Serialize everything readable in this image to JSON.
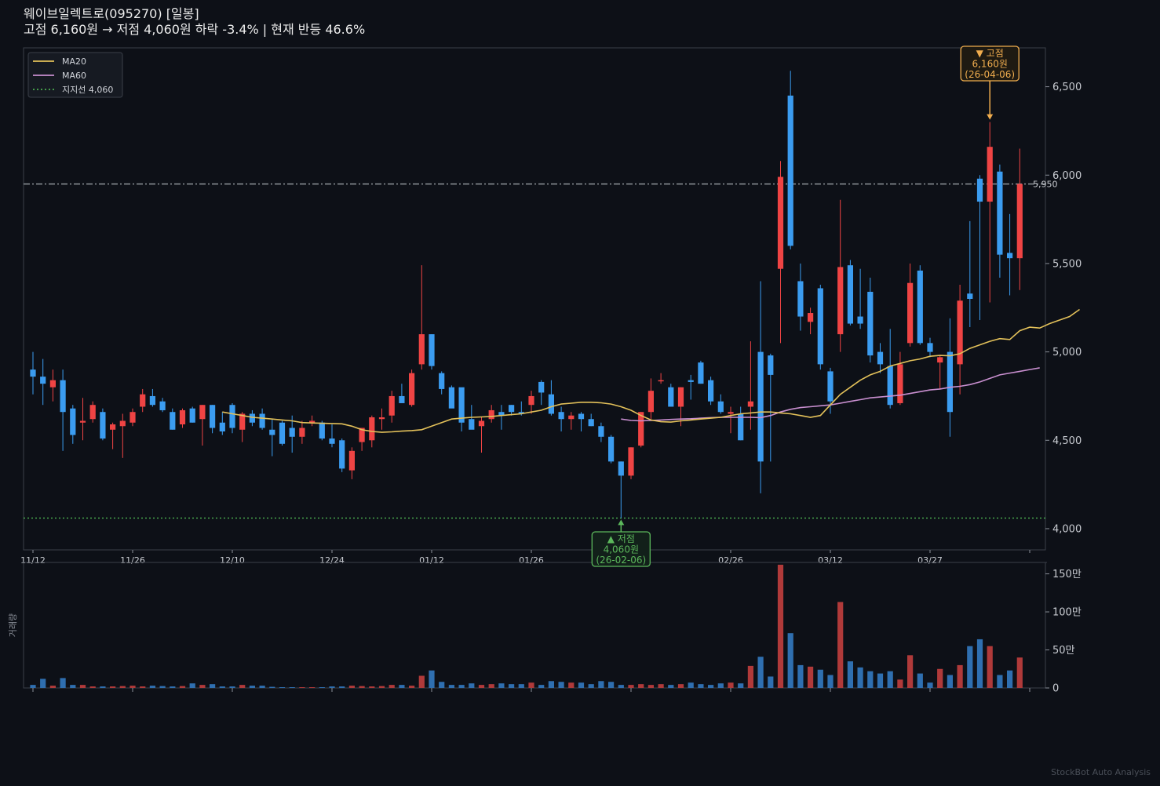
{
  "header": {
    "title": "웨이브일렉트로(095270)  [일봉]",
    "subtitle": "고점 6,160원 → 저점 4,060원  하락 -3.4%  |  현재 반등 46.6%"
  },
  "watermark": "StockBot Auto Analysis",
  "colors": {
    "background": "#0d1017",
    "up": "#ef4444",
    "down": "#3b9cf0",
    "ma20": "#e3c15a",
    "ma60": "#c98fd0",
    "support": "#4caf50",
    "resistance": "#9aa0a6",
    "high_annotation": "#f0ad4e",
    "low_annotation": "#5cb85c"
  },
  "chart_data": [
    {
      "type": "candlestick",
      "ylim": [
        3880,
        6720
      ],
      "yticks": [
        4000,
        4500,
        5000,
        5500,
        6000,
        6500
      ],
      "ytick_labels": [
        "4,000",
        "4,500",
        "5,000",
        "5,500",
        "6,000",
        "6,500"
      ],
      "xtick_labels": [
        {
          "index": 0,
          "label": "11/12"
        },
        {
          "index": 10,
          "label": "11/26"
        },
        {
          "index": 20,
          "label": "12/10"
        },
        {
          "index": 30,
          "label": "12/24"
        },
        {
          "index": 40,
          "label": "01/12"
        },
        {
          "index": 50,
          "label": "01/26"
        },
        {
          "index": 60,
          "label": ""
        },
        {
          "index": 70,
          "label": "02/26"
        },
        {
          "index": 80,
          "label": "03/12"
        },
        {
          "index": 90,
          "label": "03/27"
        },
        {
          "index": 100,
          "label": ""
        }
      ],
      "legend": {
        "position": "top-left",
        "entries": [
          {
            "name": "MA20",
            "style": "solid",
            "color": "#e3c15a"
          },
          {
            "name": "MA60",
            "style": "solid",
            "color": "#c98fd0"
          },
          {
            "name": "지지선 4,060",
            "style": "dotted",
            "color": "#4caf50"
          }
        ]
      },
      "support_line": {
        "value": 4060
      },
      "resistance_line": {
        "value": 5950,
        "label": "5,950"
      },
      "annotations": [
        {
          "kind": "high",
          "index": 96,
          "value": 6300,
          "lines": [
            "▼ 고점",
            "6,160원",
            "(26-04-06)"
          ]
        },
        {
          "kind": "low",
          "index": 59,
          "value": 4060,
          "lines": [
            "▲ 저점",
            "4,060원",
            "(26-02-06)"
          ]
        }
      ],
      "candles": [
        [
          4900,
          5000,
          4760,
          4860
        ],
        [
          4860,
          4960,
          4700,
          4820
        ],
        [
          4800,
          4900,
          4720,
          4840
        ],
        [
          4840,
          4900,
          4440,
          4660
        ],
        [
          4680,
          4700,
          4480,
          4530
        ],
        [
          4600,
          4740,
          4500,
          4610
        ],
        [
          4620,
          4720,
          4600,
          4700
        ],
        [
          4660,
          4680,
          4500,
          4510
        ],
        [
          4560,
          4600,
          4450,
          4590
        ],
        [
          4580,
          4650,
          4400,
          4610
        ],
        [
          4600,
          4680,
          4580,
          4660
        ],
        [
          4690,
          4790,
          4660,
          4760
        ],
        [
          4750,
          4790,
          4690,
          4700
        ],
        [
          4720,
          4740,
          4660,
          4670
        ],
        [
          4660,
          4680,
          4560,
          4560
        ],
        [
          4590,
          4680,
          4570,
          4670
        ],
        [
          4680,
          4690,
          4600,
          4600
        ],
        [
          4620,
          4700,
          4470,
          4700
        ],
        [
          4700,
          4700,
          4540,
          4570
        ],
        [
          4600,
          4660,
          4530,
          4550
        ],
        [
          4700,
          4710,
          4540,
          4570
        ],
        [
          4560,
          4660,
          4490,
          4650
        ],
        [
          4650,
          4670,
          4580,
          4600
        ],
        [
          4650,
          4680,
          4560,
          4570
        ],
        [
          4560,
          4620,
          4410,
          4530
        ],
        [
          4600,
          4610,
          4470,
          4480
        ],
        [
          4570,
          4640,
          4430,
          4520
        ],
        [
          4520,
          4610,
          4480,
          4570
        ],
        [
          4600,
          4640,
          4580,
          4610
        ],
        [
          4600,
          4610,
          4500,
          4510
        ],
        [
          4510,
          4590,
          4460,
          4480
        ],
        [
          4500,
          4510,
          4320,
          4340
        ],
        [
          4330,
          4460,
          4280,
          4440
        ],
        [
          4490,
          4550,
          4440,
          4570
        ],
        [
          4500,
          4640,
          4460,
          4630
        ],
        [
          4620,
          4680,
          4560,
          4630
        ],
        [
          4640,
          4780,
          4600,
          4750
        ],
        [
          4750,
          4820,
          4730,
          4710
        ],
        [
          4700,
          4900,
          4690,
          4880
        ],
        [
          4930,
          5490,
          4900,
          5100
        ],
        [
          5100,
          5100,
          4900,
          4920
        ],
        [
          4880,
          4890,
          4760,
          4790
        ],
        [
          4800,
          4810,
          4700,
          4680
        ],
        [
          4800,
          4790,
          4550,
          4600
        ],
        [
          4620,
          4700,
          4580,
          4560
        ],
        [
          4580,
          4630,
          4430,
          4610
        ],
        [
          4620,
          4700,
          4600,
          4670
        ],
        [
          4660,
          4700,
          4560,
          4640
        ],
        [
          4700,
          4700,
          4640,
          4660
        ],
        [
          4660,
          4720,
          4640,
          4650
        ],
        [
          4700,
          4780,
          4650,
          4750
        ],
        [
          4830,
          4840,
          4700,
          4770
        ],
        [
          4760,
          4840,
          4640,
          4650
        ],
        [
          4660,
          4690,
          4550,
          4620
        ],
        [
          4620,
          4660,
          4560,
          4640
        ],
        [
          4650,
          4660,
          4550,
          4620
        ],
        [
          4620,
          4650,
          4580,
          4580
        ],
        [
          4580,
          4600,
          4490,
          4520
        ],
        [
          4520,
          4530,
          4370,
          4380
        ],
        [
          4380,
          4380,
          4060,
          4300
        ],
        [
          4300,
          4460,
          4280,
          4460
        ],
        [
          4470,
          4660,
          4460,
          4660
        ],
        [
          4660,
          4850,
          4620,
          4780
        ],
        [
          4840,
          4880,
          4820,
          4840
        ],
        [
          4800,
          4820,
          4690,
          4690
        ],
        [
          4690,
          4800,
          4580,
          4800
        ],
        [
          4840,
          4870,
          4730,
          4830
        ],
        [
          4940,
          4950,
          4820,
          4820
        ],
        [
          4840,
          4860,
          4700,
          4720
        ],
        [
          4720,
          4760,
          4650,
          4660
        ],
        [
          4650,
          4690,
          4540,
          4660
        ],
        [
          4650,
          4690,
          4500,
          4500
        ],
        [
          4690,
          5060,
          4560,
          4720
        ],
        [
          5000,
          5400,
          4200,
          4380
        ],
        [
          4980,
          4990,
          4380,
          4870
        ],
        [
          5470,
          6080,
          5050,
          5990
        ],
        [
          6450,
          6590,
          5580,
          5600
        ],
        [
          5400,
          5500,
          5120,
          5200
        ],
        [
          5170,
          5250,
          5100,
          5220
        ],
        [
          5360,
          5380,
          4900,
          4930
        ],
        [
          4890,
          4910,
          4650,
          4720
        ],
        [
          5100,
          5860,
          5000,
          5480
        ],
        [
          5490,
          5520,
          5150,
          5160
        ],
        [
          5200,
          5470,
          5130,
          5160
        ],
        [
          5340,
          5420,
          4940,
          4980
        ],
        [
          5000,
          5050,
          4880,
          4930
        ],
        [
          4920,
          5130,
          4680,
          4700
        ],
        [
          4710,
          5000,
          4700,
          4930
        ],
        [
          5050,
          5500,
          5030,
          5390
        ],
        [
          5460,
          5490,
          5040,
          5050
        ],
        [
          5050,
          5080,
          4970,
          5000
        ],
        [
          4940,
          4980,
          4790,
          4970
        ],
        [
          5000,
          5190,
          4520,
          4660
        ],
        [
          4930,
          5380,
          4760,
          5290
        ],
        [
          5330,
          5740,
          5140,
          5300
        ],
        [
          5980,
          6000,
          5180,
          5850
        ],
        [
          5850,
          6300,
          5280,
          6160
        ],
        [
          6020,
          6060,
          5420,
          5550
        ],
        [
          5560,
          5780,
          5320,
          5530
        ],
        [
          5530,
          6150,
          5350,
          5950
        ]
      ],
      "ma20": [
        {
          "start": 19,
          "values": [
            4660,
            4650,
            4640,
            4630,
            4625,
            4620,
            4615,
            4610,
            4600,
            4598,
            4596,
            4595,
            4593,
            4580,
            4560,
            4550,
            4545,
            4548,
            4552,
            4555,
            4560,
            4580,
            4600,
            4620,
            4625,
            4630,
            4632,
            4635,
            4640,
            4645,
            4650,
            4660,
            4670,
            4690,
            4705,
            4710,
            4715,
            4715,
            4712,
            4705,
            4690,
            4670,
            4640,
            4615,
            4605,
            4603,
            4610,
            4615,
            4620,
            4625,
            4630,
            4640,
            4650,
            4655,
            4660,
            4660,
            4655,
            4650,
            4640,
            4630,
            4640,
            4700,
            4760,
            4800,
            4840,
            4870,
            4890,
            4920,
            4935,
            4950,
            4960,
            4975,
            4980,
            4978,
            4990,
            5020,
            5040,
            5060,
            5075,
            5070,
            5120,
            5140,
            5135,
            5160,
            5180,
            5200,
            5240
          ]
        }
      ],
      "ma60": [
        {
          "start": 59,
          "values": [
            4620,
            4612,
            4610,
            4612,
            4615,
            4618,
            4620,
            4622,
            4625,
            4628,
            4630,
            4630,
            4630,
            4630,
            4628,
            4640,
            4660,
            4675,
            4685,
            4690,
            4695,
            4700,
            4710,
            4720,
            4730,
            4740,
            4745,
            4750,
            4755,
            4765,
            4775,
            4785,
            4790,
            4800,
            4805,
            4815,
            4830,
            4850,
            4870,
            4880,
            4890,
            4900,
            4910
          ]
        }
      ],
      "candle_color_rule": "red = close above open, blue = close below open"
    },
    {
      "type": "bar",
      "ylabel": "거래량",
      "ylim": [
        0,
        1650000
      ],
      "yticks": [
        0,
        500000,
        1000000,
        1500000
      ],
      "ytick_labels": [
        "0",
        "50만",
        "100만",
        "150만"
      ],
      "values": [
        40000,
        120000,
        30000,
        130000,
        40000,
        40000,
        20000,
        20000,
        20000,
        25000,
        30000,
        20000,
        30000,
        25000,
        20000,
        25000,
        60000,
        40000,
        50000,
        20000,
        20000,
        40000,
        30000,
        30000,
        15000,
        10000,
        10000,
        10000,
        10000,
        10000,
        20000,
        20000,
        30000,
        25000,
        20000,
        25000,
        40000,
        40000,
        30000,
        160000,
        230000,
        80000,
        40000,
        40000,
        60000,
        40000,
        50000,
        60000,
        50000,
        50000,
        70000,
        40000,
        90000,
        80000,
        70000,
        70000,
        50000,
        90000,
        80000,
        40000,
        40000,
        50000,
        40000,
        50000,
        40000,
        50000,
        70000,
        50000,
        40000,
        60000,
        70000,
        60000,
        290000,
        410000,
        150000,
        1620000,
        720000,
        300000,
        280000,
        240000,
        170000,
        1130000,
        350000,
        270000,
        220000,
        190000,
        220000,
        110000,
        430000,
        190000,
        70000,
        250000,
        170000,
        300000,
        550000,
        640000,
        550000,
        170000,
        230000,
        400000
      ]
    }
  ]
}
